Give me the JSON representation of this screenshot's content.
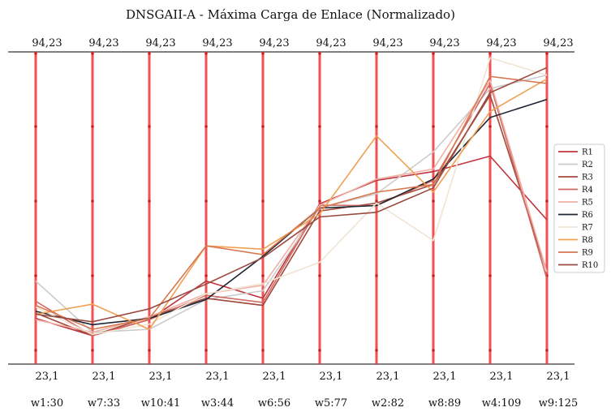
{
  "chart_data": {
    "type": "line",
    "subtype": "parallel-coordinates",
    "title": "DNSGAII-A - Máxima Carga de Enlace (Normalizado)",
    "axes": [
      "w1:30",
      "w7:33",
      "w10:41",
      "w3:44",
      "w6:56",
      "w5:77",
      "w2:82",
      "w8:89",
      "w4:109",
      "w9:125"
    ],
    "top_tick_label": "94,23",
    "bottom_tick_label": "23,1",
    "ylim": [
      23.1,
      94.23
    ],
    "grid": false,
    "legend_position": "right",
    "axis_color": "#ee3333",
    "series": [
      {
        "name": "R1",
        "color": "#c0343f",
        "values": [
          30.7,
          26.6,
          30.4,
          39.6,
          35.5,
          58.0,
          63.6,
          65.7,
          69.4,
          54.2
        ]
      },
      {
        "name": "R2",
        "color": "#cccccc",
        "values": [
          39.6,
          27.4,
          28.1,
          35.2,
          37.3,
          57.0,
          60.4,
          70.4,
          85.5,
          88.7
        ]
      },
      {
        "name": "R3",
        "color": "#a0483a",
        "values": [
          32.0,
          26.6,
          31.1,
          35.5,
          33.8,
          56.3,
          58.2,
          62.6,
          83.9,
          41.8
        ]
      },
      {
        "name": "R4",
        "color": "#d06860",
        "values": [
          34.8,
          26.6,
          30.4,
          36.2,
          34.5,
          57.7,
          57.6,
          63.6,
          86.7,
          40.1
        ]
      },
      {
        "name": "R5",
        "color": "#f1b0a4",
        "values": [
          30.4,
          27.4,
          31.1,
          36.6,
          38.6,
          57.7,
          63.9,
          66.3,
          87.4,
          41.8
        ]
      },
      {
        "name": "R6",
        "color": "#1f2633",
        "values": [
          32.4,
          29.2,
          30.7,
          35.2,
          45.5,
          57.0,
          57.6,
          63.9,
          78.6,
          82.9
        ]
      },
      {
        "name": "R7",
        "color": "#f0e4d4",
        "values": [
          33.4,
          26.9,
          29.3,
          36.6,
          39.0,
          44.1,
          58.2,
          49.3,
          92.8,
          88.7
        ]
      },
      {
        "name": "R8",
        "color": "#f0a050",
        "values": [
          31.7,
          34.1,
          28.1,
          48.0,
          47.2,
          55.6,
          74.2,
          60.8,
          80.0,
          87.8
        ]
      },
      {
        "name": "R9",
        "color": "#d87850",
        "values": [
          33.8,
          28.1,
          30.7,
          48.0,
          45.9,
          57.0,
          60.8,
          62.6,
          88.4,
          86.7
        ]
      },
      {
        "name": "R10",
        "color": "#9a4a40",
        "values": [
          31.7,
          29.9,
          33.0,
          38.9,
          45.2,
          54.9,
          56.0,
          61.8,
          84.5,
          90.5
        ]
      }
    ]
  }
}
